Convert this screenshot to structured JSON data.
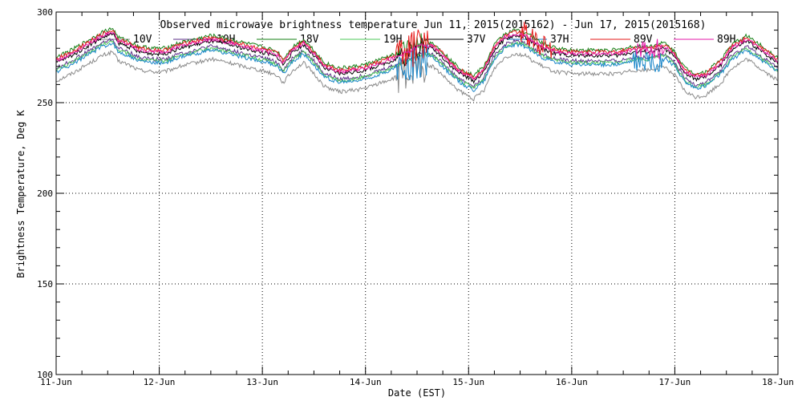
{
  "chart_data": {
    "type": "line",
    "title": "Observed microwave brightness temperature Jun 11, 2015(2015162) - Jun 17, 2015(2015168)",
    "xlabel": "Date (EST)",
    "ylabel": "Brightness Temperature, Deg K",
    "xlim": [
      0,
      7
    ],
    "ylim": [
      100,
      300
    ],
    "x_ticks": [
      {
        "value": 0,
        "label": "11-Jun"
      },
      {
        "value": 1,
        "label": "12-Jun"
      },
      {
        "value": 2,
        "label": "13-Jun"
      },
      {
        "value": 3,
        "label": "14-Jun"
      },
      {
        "value": 4,
        "label": "15-Jun"
      },
      {
        "value": 5,
        "label": "16-Jun"
      },
      {
        "value": 6,
        "label": "17-Jun"
      },
      {
        "value": 7,
        "label": "18-Jun"
      }
    ],
    "y_ticks": [
      {
        "value": 100,
        "label": "100"
      },
      {
        "value": 150,
        "label": "150"
      },
      {
        "value": 200,
        "label": "200"
      },
      {
        "value": 250,
        "label": "250"
      },
      {
        "value": 300,
        "label": "300"
      }
    ],
    "x_grid": [
      1,
      2,
      3,
      4,
      5,
      6
    ],
    "y_grid": [
      150,
      200,
      250
    ],
    "legend_position": "top",
    "base_curve": {
      "x": [
        0,
        0.15,
        0.3,
        0.45,
        0.55,
        0.6,
        0.65,
        0.7,
        0.8,
        0.95,
        1.05,
        1.2,
        1.35,
        1.5,
        1.6,
        1.75,
        1.9,
        2.05,
        2.15,
        2.2,
        2.3,
        2.4,
        2.5,
        2.6,
        2.75,
        2.9,
        3.0,
        3.15,
        3.3,
        3.45,
        3.55,
        3.65,
        3.75,
        3.85,
        3.95,
        4.05,
        4.15,
        4.25,
        4.35,
        4.45,
        4.55,
        4.65,
        4.75,
        4.85,
        5.0,
        5.15,
        5.3,
        5.45,
        5.6,
        5.75,
        5.9,
        6.0,
        6.1,
        6.2,
        6.3,
        6.45,
        6.55,
        6.7,
        6.85,
        7.0
      ],
      "y": [
        273,
        277,
        282,
        287,
        289,
        284,
        283,
        282,
        279,
        278,
        278,
        281,
        283,
        285,
        284,
        282,
        280,
        278,
        276,
        272,
        279,
        283,
        277,
        270,
        267,
        268,
        269,
        272,
        275,
        279,
        282,
        281,
        276,
        270,
        266,
        263,
        268,
        280,
        286,
        288,
        287,
        283,
        280,
        278,
        277,
        277,
        277,
        277,
        279,
        279,
        281,
        276,
        267,
        264,
        265,
        272,
        280,
        285,
        279,
        273
      ]
    },
    "series": [
      {
        "name": "10V",
        "color": "#8a8a8a",
        "offset": -11,
        "spikes": [
          [
            3.3,
            3.6,
            10
          ]
        ]
      },
      {
        "name": "10H",
        "color": "#5d2f8a",
        "offset": -4,
        "spikes": []
      },
      {
        "name": "18V",
        "color": "#158015",
        "offset": 2,
        "spikes": [
          [
            3.3,
            3.55,
            5
          ]
        ]
      },
      {
        "name": "19H",
        "color": "#4cc95a",
        "offset": -5,
        "spikes": []
      },
      {
        "name": "37V",
        "color": "#000000",
        "offset": -1,
        "spikes": [
          [
            3.3,
            3.55,
            6
          ]
        ]
      },
      {
        "name": "37H",
        "color": "#1a86c9",
        "offset": -6,
        "spikes": [
          [
            3.3,
            3.6,
            12
          ],
          [
            5.6,
            5.9,
            8
          ]
        ]
      },
      {
        "name": "89V",
        "color": "#e61a1a",
        "offset": 1,
        "spikes": [
          [
            3.3,
            3.6,
            10
          ],
          [
            4.5,
            4.8,
            6
          ]
        ]
      },
      {
        "name": "89H",
        "color": "#e61aa8",
        "offset": 0,
        "spikes": [
          [
            5.6,
            5.9,
            6
          ]
        ]
      }
    ]
  }
}
